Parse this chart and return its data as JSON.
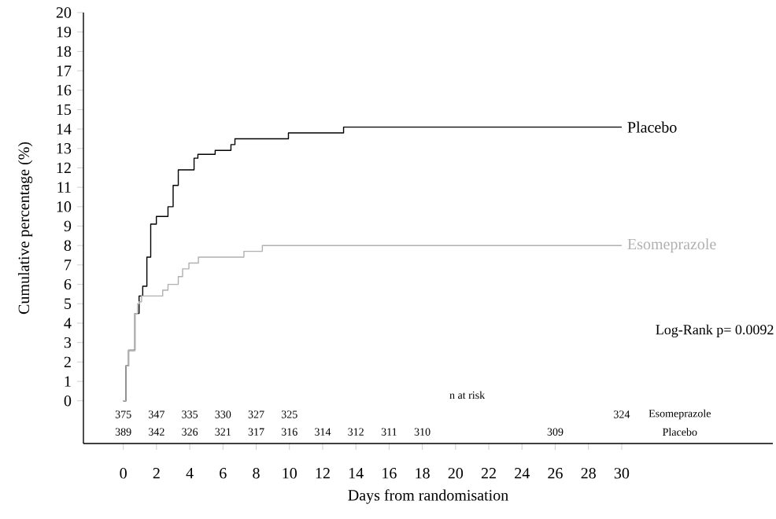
{
  "chart_data": {
    "type": "step",
    "xlabel": "Days from randomisation",
    "ylabel": "Cumulative percentage (%)",
    "xlim": [
      -2.4,
      39.1
    ],
    "ylim": [
      -2.2,
      20
    ],
    "xticks": [
      0,
      2,
      4,
      6,
      8,
      10,
      12,
      14,
      16,
      18,
      20,
      22,
      24,
      26,
      28,
      30
    ],
    "yticks": [
      0,
      1,
      2,
      3,
      4,
      5,
      6,
      7,
      8,
      9,
      10,
      11,
      12,
      13,
      14,
      15,
      16,
      17,
      18,
      19,
      20
    ],
    "grid": false,
    "legend": false,
    "marker": "none",
    "line_style": "solid",
    "series": [
      {
        "name": "Placebo",
        "color": "#000000",
        "x": [
          0,
          0.16,
          0.32,
          0.7,
          0.95,
          1.17,
          1.42,
          1.65,
          1.99,
          2.69,
          3.0,
          3.31,
          4.26,
          4.49,
          5.53,
          6.48,
          6.72,
          9.94,
          13.26,
          30
        ],
        "values": [
          0,
          1.8,
          2.6,
          4.5,
          5.4,
          5.9,
          7.4,
          9.1,
          9.5,
          10.0,
          11.1,
          11.9,
          12.5,
          12.7,
          12.9,
          13.2,
          13.5,
          13.8,
          14.1,
          14.1
        ]
      },
      {
        "name": "Esomeprazole",
        "color": "#b0b0b0",
        "x": [
          0,
          0.16,
          0.32,
          0.7,
          0.86,
          0.95,
          1.1,
          2.37,
          2.69,
          3.31,
          3.57,
          3.95,
          4.52,
          7.26,
          8.37,
          30
        ],
        "values": [
          0,
          1.8,
          2.6,
          4.5,
          5.0,
          5.1,
          5.4,
          5.7,
          6.0,
          6.4,
          6.8,
          7.1,
          7.4,
          7.7,
          8.0,
          8.0
        ]
      }
    ],
    "annotations": [
      "n at risk",
      "375",
      "347",
      "335",
      "330",
      "327",
      "325",
      "324",
      "389",
      "342",
      "326",
      "321",
      "317",
      "316",
      "314",
      "312",
      "311",
      "310",
      "309",
      "Esomeprazole",
      "Placebo",
      "Log-Rank p= 0.0092"
    ]
  }
}
